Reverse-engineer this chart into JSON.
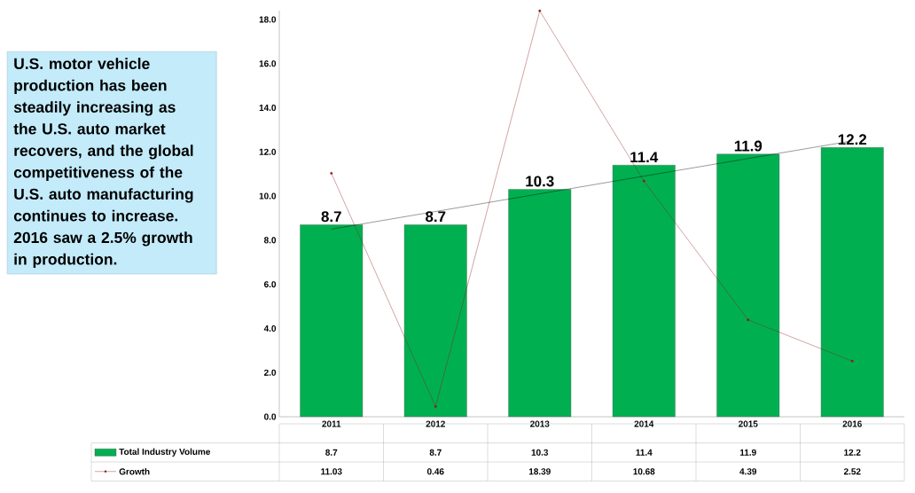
{
  "chart_data": {
    "type": "bar",
    "categories": [
      "2011",
      "2012",
      "2013",
      "2014",
      "2015",
      "2016"
    ],
    "series": [
      {
        "name": "Total Industry Volume",
        "color": "#00b050",
        "values": [
          8.7,
          8.7,
          10.3,
          11.4,
          11.9,
          12.2
        ],
        "value_labels": [
          "8.7",
          "8.7",
          "10.3",
          "11.4",
          "11.9",
          "12.2"
        ]
      },
      {
        "name": "Growth",
        "type": "line",
        "color": "#8b1a1a",
        "marker": "circle",
        "values": [
          11.03,
          0.46,
          18.39,
          10.68,
          4.39,
          2.52
        ],
        "value_labels": [
          "11.03",
          "0.46",
          "18.39",
          "10.68",
          "4.39",
          "2.52"
        ]
      },
      {
        "type": "line",
        "color": "#000000",
        "values": [
          8.5,
          9.3,
          10.1,
          10.9,
          11.7,
          12.5
        ]
      }
    ],
    "ylim": [
      0,
      18.4
    ],
    "yticks": [
      {
        "value": 0,
        "label": "0.0"
      },
      {
        "value": 2,
        "label": "2.0"
      },
      {
        "value": 4,
        "label": "4.0"
      },
      {
        "value": 6,
        "label": "6.0"
      },
      {
        "value": 8,
        "label": "8.0"
      },
      {
        "value": 10,
        "label": "10.0"
      },
      {
        "value": 12,
        "label": "12.0"
      },
      {
        "value": 14,
        "label": "14.0"
      },
      {
        "value": 16,
        "label": "16.0"
      },
      {
        "value": 18,
        "label": "18.0"
      }
    ],
    "legend": "bottom",
    "annotations": [
      "U.S. motor vehicle production has been steadily increasing as the U.S. auto market recovers, and the global competitiveness of the U.S. auto manufacturing continues to increase.  2016 saw a 2.5% growth in production."
    ]
  }
}
